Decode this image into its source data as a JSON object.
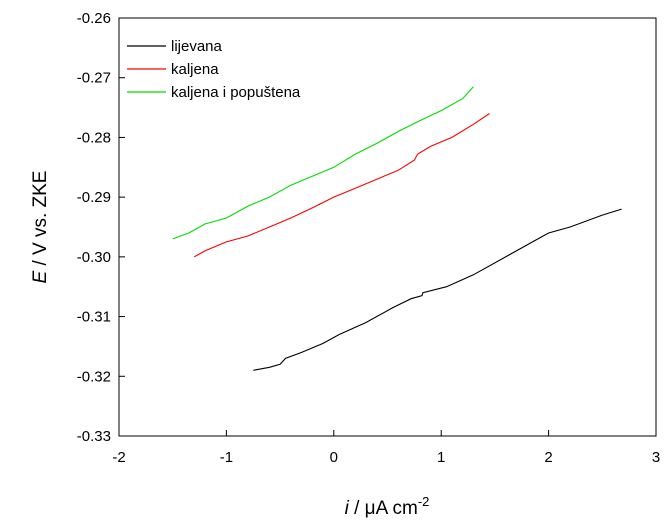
{
  "chart_data": {
    "type": "line",
    "title": "",
    "xlabel": {
      "var": "i",
      "rest": " / μA cm",
      "sup": "-2"
    },
    "ylabel": {
      "var": "E",
      "rest": " / V vs. ZKE"
    },
    "xlim": [
      -2,
      3
    ],
    "ylim": [
      -0.33,
      -0.26
    ],
    "xticks": [
      -2,
      -1,
      0,
      1,
      2,
      3
    ],
    "xtick_labels": [
      "-2",
      "-1",
      "0",
      "1",
      "2",
      "3"
    ],
    "yticks": [
      -0.33,
      -0.32,
      -0.31,
      -0.3,
      -0.29,
      -0.28,
      -0.27,
      -0.26
    ],
    "ytick_labels": [
      "-0.33",
      "-0.32",
      "-0.31",
      "-0.30",
      "-0.29",
      "-0.28",
      "-0.27",
      "-0.26"
    ],
    "grid": false,
    "legend_position": "top-left",
    "series": [
      {
        "name": "lijevana",
        "color": "#000000",
        "x": [
          -0.75,
          -0.6,
          -0.5,
          -0.45,
          -0.3,
          -0.1,
          0.05,
          0.3,
          0.55,
          0.72,
          0.82,
          0.83,
          1.05,
          1.3,
          1.6,
          1.85,
          2.0,
          2.2,
          2.5,
          2.68
        ],
        "y": [
          -0.319,
          -0.3185,
          -0.318,
          -0.317,
          -0.316,
          -0.3145,
          -0.313,
          -0.311,
          -0.3085,
          -0.307,
          -0.3065,
          -0.306,
          -0.305,
          -0.303,
          -0.3,
          -0.2975,
          -0.296,
          -0.295,
          -0.293,
          -0.292
        ]
      },
      {
        "name": "kaljena",
        "color": "#ff0000",
        "x": [
          -1.3,
          -1.2,
          -1.0,
          -0.8,
          -0.6,
          -0.4,
          -0.2,
          0.0,
          0.2,
          0.4,
          0.6,
          0.75,
          0.78,
          0.9,
          1.1,
          1.3,
          1.45
        ],
        "y": [
          -0.3,
          -0.299,
          -0.2975,
          -0.2965,
          -0.295,
          -0.2935,
          -0.2918,
          -0.29,
          -0.2885,
          -0.287,
          -0.2855,
          -0.2838,
          -0.2828,
          -0.2815,
          -0.28,
          -0.2778,
          -0.276
        ]
      },
      {
        "name": "kaljena i popuštena",
        "color": "#00dd00",
        "x": [
          -1.5,
          -1.35,
          -1.2,
          -1.0,
          -0.8,
          -0.6,
          -0.4,
          -0.2,
          0.0,
          0.2,
          0.4,
          0.6,
          0.8,
          1.0,
          1.2,
          1.3
        ],
        "y": [
          -0.297,
          -0.296,
          -0.2945,
          -0.2935,
          -0.2915,
          -0.29,
          -0.288,
          -0.2865,
          -0.285,
          -0.2828,
          -0.281,
          -0.279,
          -0.2772,
          -0.2755,
          -0.2735,
          -0.2715
        ]
      }
    ]
  }
}
